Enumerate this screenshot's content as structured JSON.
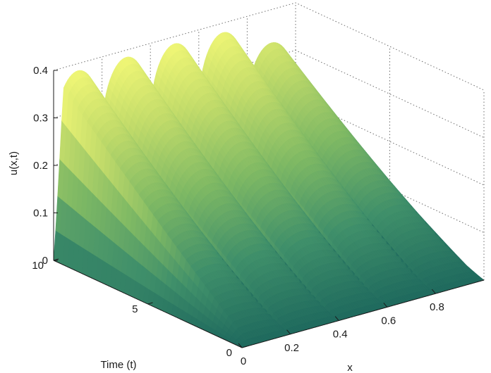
{
  "chart_data": {
    "type": "surface",
    "title": "",
    "xlabel": "x",
    "ylabel": "Time (t)",
    "zlabel": "u(x,t)",
    "xlim": [
      0,
      1
    ],
    "ylim": [
      0,
      10
    ],
    "zlim": [
      0,
      0.4
    ],
    "grid": true,
    "x_ticks": [
      0,
      0.2,
      0.4,
      0.6,
      0.8
    ],
    "x_tick_labels": [
      "0",
      "0.2",
      "0.4",
      "0.6",
      "0.8"
    ],
    "y_ticks": [
      0,
      5,
      10
    ],
    "y_tick_labels": [
      "0",
      "5",
      "10"
    ],
    "z_ticks": [
      0,
      0.1,
      0.2,
      0.3,
      0.4
    ],
    "z_tick_labels": [
      "0",
      "0.1",
      "0.2",
      "0.3",
      "0.4"
    ],
    "colormap": [
      "#1f6a5e",
      "#3f8f6a",
      "#7fb964",
      "#c3dc6a",
      "#f8fb78"
    ],
    "ridges": [
      {
        "x": 0.1,
        "u_final": 0.385
      },
      {
        "x": 0.3,
        "u_final": 0.385
      },
      {
        "x": 0.5,
        "u_final": 0.385
      },
      {
        "x": 0.7,
        "u_final": 0.38
      },
      {
        "x": 0.9,
        "u_final": 0.33
      }
    ]
  }
}
